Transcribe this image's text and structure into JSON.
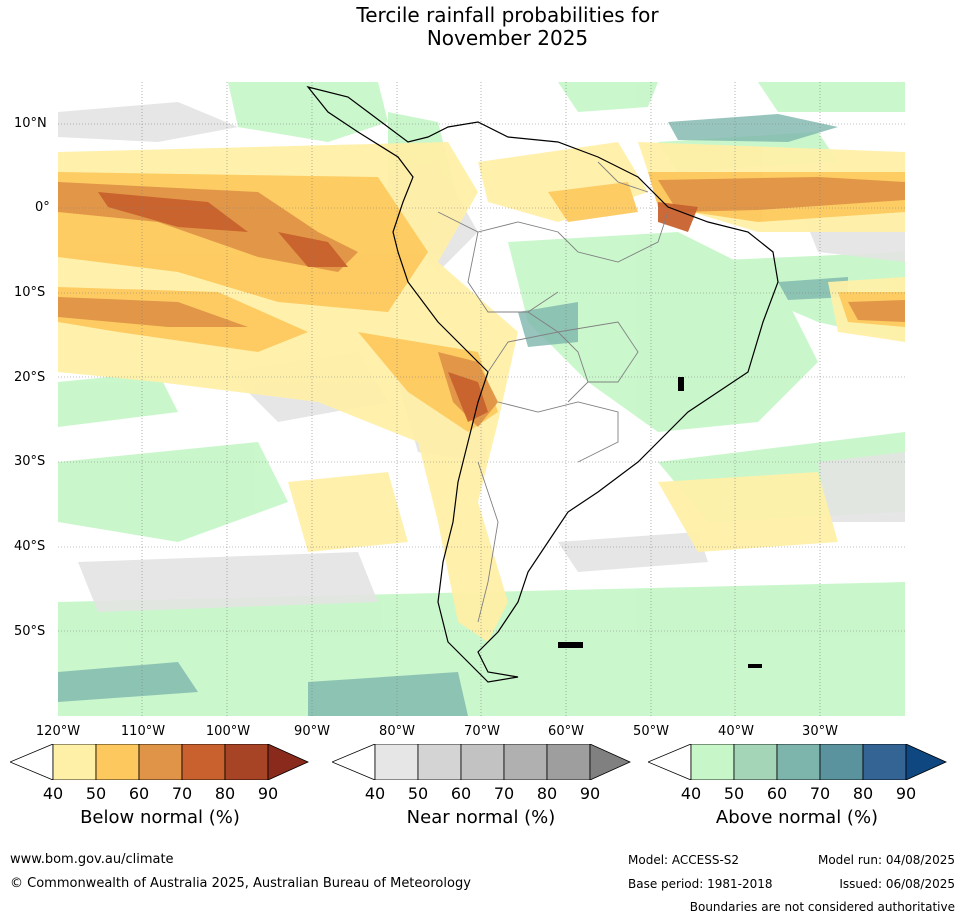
{
  "title_line1": "Tercile rainfall probabilities for",
  "title_line2": "November 2025",
  "lat_labels": [
    "10°N",
    "0°",
    "10°S",
    "20°S",
    "30°S",
    "40°S",
    "50°S"
  ],
  "lon_labels": [
    "120°W",
    "110°W",
    "100°W",
    "90°W",
    "80°W",
    "70°W",
    "60°W",
    "50°W",
    "40°W",
    "30°W"
  ],
  "colorbars": [
    {
      "title": "Below normal (%)",
      "ticks": [
        "40",
        "50",
        "60",
        "70",
        "80",
        "90"
      ],
      "colors": [
        "#fff0a8",
        "#fdc95e",
        "#e09447",
        "#c8612d",
        "#a84426",
        "#8a2a1c"
      ]
    },
    {
      "title": "Near normal (%)",
      "ticks": [
        "40",
        "50",
        "60",
        "70",
        "80",
        "90"
      ],
      "colors": [
        "#e6e6e6",
        "#d4d4d4",
        "#c2c2c2",
        "#b0b0b0",
        "#9e9e9e",
        "#808080"
      ]
    },
    {
      "title": "Above normal (%)",
      "ticks": [
        "40",
        "50",
        "60",
        "70",
        "80",
        "90"
      ],
      "colors": [
        "#c7f7c9",
        "#a4d5b6",
        "#7db5ad",
        "#5a939e",
        "#336494",
        "#0f4780"
      ]
    }
  ],
  "footer": {
    "url": "www.bom.gov.au/climate",
    "copyright": "© Commonwealth of Australia 2025, Australian Bureau of Meteorology",
    "model": "Model: ACCESS-S2",
    "model_run": "Model run: 04/08/2025",
    "base_period": "Base period: 1981-2018",
    "issued": "Issued: 06/08/2025",
    "disclaimer": "Boundaries are not considered authoritative"
  }
}
